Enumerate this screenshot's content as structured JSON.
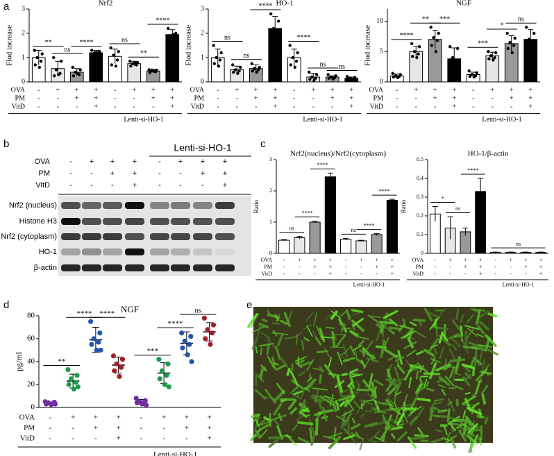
{
  "panel_labels": [
    "a",
    "b",
    "c",
    "d",
    "e"
  ],
  "blot": {
    "title": "Lenti-si-HO-1",
    "conditions": [
      {
        "name": "OVA",
        "signs": [
          "-",
          "+",
          "+",
          "+",
          "-",
          "+",
          "+",
          "+"
        ]
      },
      {
        "name": "PM",
        "signs": [
          "-",
          "-",
          "+",
          "+",
          "-",
          "-",
          "+",
          "+"
        ]
      },
      {
        "name": "VitD",
        "signs": [
          "-",
          "-",
          "-",
          "+",
          "-",
          "-",
          "-",
          "+"
        ]
      }
    ],
    "rows": [
      "Nrf2 (nucleus)",
      "Histone H3",
      "Nrf2 (cytoplasm)",
      "HO-1",
      "β-actin"
    ]
  },
  "chart_data": [
    {
      "type": "bar",
      "title": "Nrf2",
      "ylabel": "Flod increase",
      "categories": [
        null,
        null,
        null,
        null,
        null,
        null,
        null,
        null
      ],
      "values": [
        1.0,
        0.55,
        0.4,
        1.2,
        1.05,
        0.75,
        0.45,
        1.95
      ],
      "errors": [
        0.3,
        0.3,
        0.15,
        0.1,
        0.3,
        0.1,
        0.08,
        0.2
      ],
      "points": [
        [
          1.3,
          1.15,
          1.0,
          0.85,
          0.7,
          0.6
        ],
        [
          1.0,
          0.85,
          0.5,
          0.35,
          0.25,
          0.3
        ],
        [
          0.6,
          0.5,
          0.4,
          0.3,
          0.25,
          0.35
        ],
        [
          1.3,
          1.25,
          1.2,
          1.15,
          1.1,
          1.2
        ],
        [
          1.4,
          1.25,
          1.1,
          0.9,
          0.7,
          0.65
        ],
        [
          0.85,
          0.8,
          0.75,
          0.7,
          0.65,
          0.78
        ],
        [
          0.5,
          0.48,
          0.45,
          0.42,
          0.38,
          0.44
        ],
        [
          2.2,
          2.0,
          1.9,
          1.85,
          1.8,
          1.95
        ]
      ],
      "colors": [
        "#ffffff",
        "#e6e6e6",
        "#999999",
        "#000000",
        "#ffffff",
        "#e6e6e6",
        "#999999",
        "#000000"
      ],
      "ylim": [
        0,
        3
      ],
      "yticks": [
        0,
        1,
        2,
        3
      ],
      "comparisons": [
        {
          "label": "**",
          "bars": [
            0,
            1
          ]
        },
        {
          "label": "ns",
          "bars": [
            1,
            2
          ]
        },
        {
          "label": "****",
          "bars": [
            2,
            3
          ]
        },
        {
          "label": "ns",
          "bars": [
            4,
            5
          ]
        },
        {
          "label": "**",
          "bars": [
            5,
            6
          ]
        },
        {
          "label": "****",
          "bars": [
            6,
            7
          ]
        }
      ],
      "conditions": [
        {
          "name": "OVA",
          "signs": [
            "-",
            "+",
            "+",
            "+",
            "-",
            "+",
            "+",
            "+"
          ]
        },
        {
          "name": "PM",
          "signs": [
            "-",
            "-",
            "+",
            "+",
            "-",
            "-",
            "+",
            "+"
          ]
        },
        {
          "name": "VitD",
          "signs": [
            "-",
            "-",
            "-",
            "+",
            "-",
            "-",
            "-",
            "+"
          ]
        }
      ],
      "group_label": "Lenti-si-HO-1"
    },
    {
      "type": "bar",
      "title": "HO-1",
      "ylabel": "Flod increase",
      "categories": [
        null,
        null,
        null,
        null,
        null,
        null,
        null,
        null
      ],
      "values": [
        1.0,
        0.5,
        0.55,
        2.2,
        1.0,
        0.2,
        0.2,
        0.15
      ],
      "errors": [
        0.35,
        0.15,
        0.15,
        0.5,
        0.35,
        0.15,
        0.05,
        0.05
      ],
      "points": [
        [
          1.5,
          1.2,
          1.0,
          0.9,
          0.75,
          0.65
        ],
        [
          0.7,
          0.6,
          0.5,
          0.45,
          0.4,
          0.35
        ],
        [
          0.75,
          0.6,
          0.55,
          0.5,
          0.45,
          0.4
        ],
        [
          2.8,
          2.5,
          2.2,
          2.0,
          1.8,
          1.7
        ],
        [
          1.5,
          1.2,
          1.0,
          0.85,
          0.7,
          0.6
        ],
        [
          0.4,
          0.3,
          0.2,
          0.15,
          0.1,
          0.05
        ],
        [
          0.3,
          0.25,
          0.2,
          0.18,
          0.15,
          0.12
        ],
        [
          0.22,
          0.18,
          0.15,
          0.13,
          0.12,
          0.1
        ]
      ],
      "colors": [
        "#ffffff",
        "#e6e6e6",
        "#999999",
        "#000000",
        "#ffffff",
        "#e6e6e6",
        "#999999",
        "#000000"
      ],
      "ylim": [
        0,
        3
      ],
      "yticks": [
        0,
        1,
        2,
        3
      ],
      "comparisons": [
        {
          "label": "ns",
          "bars": [
            0,
            1
          ]
        },
        {
          "label": "ns",
          "bars": [
            1,
            2
          ]
        },
        {
          "label": "****",
          "bars": [
            2,
            3
          ]
        },
        {
          "label": "****",
          "bars": [
            4,
            5
          ]
        },
        {
          "label": "ns",
          "bars": [
            5,
            6
          ]
        },
        {
          "label": "ns",
          "bars": [
            6,
            7
          ]
        }
      ],
      "conditions": [
        {
          "name": "OVA",
          "signs": [
            "-",
            "+",
            "+",
            "+",
            "-",
            "+",
            "+",
            "+"
          ]
        },
        {
          "name": "PM",
          "signs": [
            "-",
            "-",
            "+",
            "+",
            "-",
            "-",
            "+",
            "+"
          ]
        },
        {
          "name": "VitD",
          "signs": [
            "-",
            "-",
            "-",
            "+",
            "-",
            "-",
            "-",
            "+"
          ]
        }
      ],
      "group_label": "Lenti-si-HO-1"
    },
    {
      "type": "bar",
      "title": "NGF",
      "ylabel": "Flod increase",
      "categories": [
        null,
        null,
        null,
        null,
        null,
        null,
        null,
        null
      ],
      "values": [
        1.0,
        5.0,
        7.0,
        3.8,
        1.2,
        4.3,
        6.3,
        7.0
      ],
      "errors": [
        0.3,
        0.8,
        1.5,
        1.8,
        0.4,
        0.6,
        1.3,
        1.6
      ],
      "points": [
        [
          1.4,
          1.2,
          1.0,
          0.9,
          0.8,
          0.7
        ],
        [
          6.3,
          5.8,
          5.0,
          4.6,
          4.2,
          4.0
        ],
        [
          9.0,
          8.0,
          7.3,
          6.8,
          6.0,
          5.0
        ],
        [
          5.8,
          5.5,
          4.0,
          3.0,
          2.3,
          2.0
        ],
        [
          1.8,
          1.5,
          1.2,
          1.0,
          0.9,
          0.8
        ],
        [
          5.0,
          4.8,
          4.3,
          4.0,
          3.8,
          3.6
        ],
        [
          8.0,
          7.2,
          6.5,
          6.0,
          5.5,
          4.8
        ],
        [
          9.0,
          8.0,
          7.0,
          6.5,
          5.8,
          5.0
        ]
      ],
      "colors": [
        "#ffffff",
        "#e6e6e6",
        "#999999",
        "#000000",
        "#ffffff",
        "#e6e6e6",
        "#999999",
        "#000000"
      ],
      "ylim": [
        0,
        12
      ],
      "yticks": [
        0,
        5,
        10
      ],
      "comparisons": [
        {
          "label": "****",
          "bars": [
            0,
            1
          ]
        },
        {
          "label": "**",
          "bars": [
            1,
            2
          ]
        },
        {
          "label": "***",
          "bars": [
            2,
            3
          ]
        },
        {
          "label": "***",
          "bars": [
            4,
            5
          ]
        },
        {
          "label": "*",
          "bars": [
            5,
            6
          ]
        },
        {
          "label": "ns",
          "bars": [
            6,
            7
          ]
        }
      ],
      "conditions": [
        {
          "name": "OVA",
          "signs": [
            "-",
            "+",
            "+",
            "+",
            "-",
            "+",
            "+",
            "+"
          ]
        },
        {
          "name": "PM",
          "signs": [
            "-",
            "-",
            "+",
            "+",
            "-",
            "-",
            "+",
            "+"
          ]
        },
        {
          "name": "VitD",
          "signs": [
            "-",
            "-",
            "-",
            "+",
            "-",
            "-",
            "-",
            "+"
          ]
        }
      ],
      "group_label": "Lenti-si-HO-1"
    },
    {
      "type": "bar",
      "title": "Nrf2(nucleus)/Nrf2(cytoplasm)",
      "ylabel": "Ratio",
      "categories": [
        null,
        null,
        null,
        null,
        null,
        null,
        null,
        null
      ],
      "values": [
        0.42,
        0.5,
        1.0,
        2.45,
        0.45,
        0.4,
        0.6,
        1.7
      ],
      "errors": [
        0.02,
        0.04,
        0.03,
        0.12,
        0.03,
        0.02,
        0.03,
        0.03
      ],
      "colors": [
        "#ffffff",
        "#e6e6e6",
        "#999999",
        "#000000",
        "#ffffff",
        "#e6e6e6",
        "#999999",
        "#000000"
      ],
      "ylim": [
        0,
        3
      ],
      "yticks": [
        0,
        1,
        2,
        3
      ],
      "comparisons": [
        {
          "label": "ns",
          "bars": [
            0,
            1
          ]
        },
        {
          "label": "****",
          "bars": [
            1,
            2
          ]
        },
        {
          "label": "****",
          "bars": [
            2,
            3
          ]
        },
        {
          "label": "ns",
          "bars": [
            4,
            5
          ]
        },
        {
          "label": "****",
          "bars": [
            5,
            6
          ]
        },
        {
          "label": "****",
          "bars": [
            6,
            7
          ]
        }
      ],
      "conditions": [
        {
          "name": "OVA",
          "signs": [
            "-",
            "+",
            "+",
            "+",
            "-",
            "+",
            "+",
            "+"
          ]
        },
        {
          "name": "PM",
          "signs": [
            "-",
            "-",
            "+",
            "+",
            "-",
            "-",
            "+",
            "+"
          ]
        },
        {
          "name": "VitD",
          "signs": [
            "-",
            "-",
            "-",
            "+",
            "-",
            "-",
            "-",
            "+"
          ]
        }
      ],
      "group_label": "Lenti-si-HO-1"
    },
    {
      "type": "bar",
      "title": "HO-1/β-actin",
      "ylabel": "Ratio",
      "categories": [
        null,
        null,
        null,
        null,
        null,
        null,
        null,
        null
      ],
      "values": [
        0.21,
        0.135,
        0.115,
        0.33,
        0.005,
        0.005,
        0.005,
        0.005
      ],
      "errors": [
        0.04,
        0.06,
        0.02,
        0.07,
        0.002,
        0.002,
        0.002,
        0.002
      ],
      "colors": [
        "#ffffff",
        "#e6e6e6",
        "#999999",
        "#000000",
        "#ffffff",
        "#e6e6e6",
        "#999999",
        "#000000"
      ],
      "ylim": [
        0,
        0.5
      ],
      "yticks": [
        0,
        0.1,
        0.2,
        0.3,
        0.4,
        0.5
      ],
      "comparisons": [
        {
          "label": "*",
          "bars": [
            0,
            1
          ]
        },
        {
          "label": "ns",
          "bars": [
            1,
            2
          ]
        },
        {
          "label": "****",
          "bars": [
            2,
            3
          ]
        },
        {
          "label": "ns",
          "bars": [
            4,
            7
          ]
        }
      ],
      "conditions": [
        {
          "name": "OVA",
          "signs": [
            "-",
            "+",
            "+",
            "+",
            "-",
            "+",
            "+",
            "+"
          ]
        },
        {
          "name": "PM",
          "signs": [
            "-",
            "-",
            "+",
            "+",
            "-",
            "-",
            "+",
            "+"
          ]
        },
        {
          "name": "VitD",
          "signs": [
            "-",
            "-",
            "-",
            "+",
            "-",
            "-",
            "-",
            "+"
          ]
        }
      ],
      "group_label": "Lenti-si-HO-1"
    },
    {
      "type": "scatter",
      "title": "NGF",
      "ylabel": "pg/ml",
      "categories": [
        null,
        null,
        null,
        null,
        null,
        null,
        null,
        null
      ],
      "values": [
        3.5,
        23,
        59,
        37,
        5,
        30,
        56,
        66
      ],
      "errors": [
        1,
        6,
        11,
        7,
        2,
        9,
        10,
        8
      ],
      "points": [
        [
          5,
          4.5,
          4,
          3.5,
          3,
          2.5,
          3
        ],
        [
          33,
          28,
          25,
          22,
          20,
          16,
          18
        ],
        [
          75,
          65,
          60,
          57,
          55,
          50,
          50
        ],
        [
          45,
          42,
          38,
          35,
          32,
          27
        ],
        [
          8,
          6,
          5,
          4.5,
          4,
          3,
          2
        ],
        [
          42,
          38,
          32,
          28,
          25,
          20,
          18
        ],
        [
          65,
          62,
          58,
          55,
          52,
          46,
          40
        ],
        [
          78,
          72,
          68,
          65,
          60,
          55
        ]
      ],
      "colors": [
        "#7030a0",
        "#1e9a4e",
        "#2255aa",
        "#a0202a",
        "#7030a0",
        "#1e9a4e",
        "#2255aa",
        "#a0202a"
      ],
      "ylim": [
        0,
        80
      ],
      "yticks": [
        0,
        20,
        40,
        60,
        80
      ],
      "comparisons": [
        {
          "label": "**",
          "bars": [
            0,
            1
          ]
        },
        {
          "label": "****",
          "bars": [
            1,
            2
          ]
        },
        {
          "label": "****",
          "bars": [
            2,
            3
          ]
        },
        {
          "label": "***",
          "bars": [
            4,
            5
          ]
        },
        {
          "label": "****",
          "bars": [
            5,
            6
          ]
        },
        {
          "label": "ns",
          "bars": [
            6,
            7
          ]
        }
      ],
      "conditions": [
        {
          "name": "OVA",
          "signs": [
            "-",
            "+",
            "+",
            "+",
            "-",
            "+",
            "+",
            "+"
          ]
        },
        {
          "name": "PM",
          "signs": [
            "-",
            "-",
            "+",
            "+",
            "-",
            "-",
            "+",
            "+"
          ]
        },
        {
          "name": "VitD",
          "signs": [
            "-",
            "-",
            "-",
            "+",
            "-",
            "-",
            "-",
            "+"
          ]
        }
      ],
      "group_label": "Lenti-si-HO-1"
    }
  ]
}
